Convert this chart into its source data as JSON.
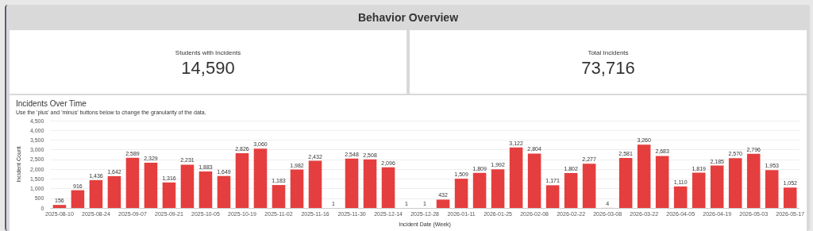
{
  "chart_data": [
    {
      "type": "other",
      "title": "Behavior Overview"
    },
    {
      "type": "other",
      "title": "Students with Incidents",
      "annotations": [
        "14,590"
      ]
    },
    {
      "type": "other",
      "title": "Total Incidents",
      "annotations": [
        "73,716"
      ]
    },
    {
      "type": "bar",
      "title": "Incidents Over Time",
      "subtitle": "Use the 'plus' and 'minus' buttons below to change the granularity of the data.",
      "xlabel": "Incident Date (Week)",
      "ylabel": "Incident Count",
      "categories": [
        "2025-08-10",
        null,
        "2025-08-24",
        null,
        "2025-09-07",
        null,
        "2025-09-21",
        null,
        "2025-10-05",
        null,
        "2025-10-19",
        null,
        "2025-11-02",
        null,
        "2025-11-16",
        null,
        "2025-11-30",
        null,
        "2025-12-14",
        null,
        "2025-12-28",
        null,
        "2026-01-11",
        null,
        "2026-01-25",
        null,
        "2026-02-08",
        null,
        "2026-02-22",
        null,
        "2026-03-08",
        null,
        "2026-03-22",
        null,
        "2026-04-05",
        null,
        "2026-04-19",
        null,
        "2026-05-03",
        null,
        "2026-05-17"
      ],
      "values": [
        156,
        916,
        1436,
        1642,
        2589,
        2329,
        1316,
        2231,
        1883,
        1649,
        2826,
        3060,
        1183,
        1982,
        2432,
        1,
        2548,
        2508,
        2096,
        1,
        1,
        432,
        1509,
        1809,
        1992,
        3122,
        2804,
        1171,
        1802,
        2277,
        4,
        2581,
        3260,
        2683,
        1110,
        1819,
        2185,
        2570,
        2796,
        1953,
        1052
      ],
      "value_labels": [
        "156",
        "916",
        "1,436",
        "1,642",
        "2,589",
        "2,329",
        "1,316",
        "2,231",
        "1,883",
        "1,649",
        "2,826",
        "3,060",
        "1,183",
        "1,982",
        "2,432",
        "1",
        "2,548",
        "2,508",
        "2,096",
        "1",
        "1",
        "432",
        "1,509",
        "1,809",
        "1,992",
        "3,122",
        "2,804",
        "1,171",
        "1,802",
        "2,277",
        "4",
        "2,581",
        "3,260",
        "2,683",
        "1,110",
        "1,819",
        "2,185",
        "2,570",
        "2,796",
        "1,953",
        "1,052"
      ],
      "color": "#e53e3e",
      "grid": "y",
      "ylim": [
        0,
        4500
      ],
      "yticks": [
        0,
        500,
        {
          "value": 1000,
          "label": "1,000"
        },
        {
          "value": 1500,
          "label": "1,500"
        },
        {
          "value": 2000,
          "label": "2,000"
        },
        {
          "value": 2500,
          "label": "2,500"
        },
        {
          "value": 3000,
          "label": "3,000"
        },
        {
          "value": 3500,
          "label": "3,500"
        },
        {
          "value": 4000,
          "label": "4,000"
        },
        {
          "value": 4500,
          "label": "4,500"
        }
      ]
    }
  ]
}
